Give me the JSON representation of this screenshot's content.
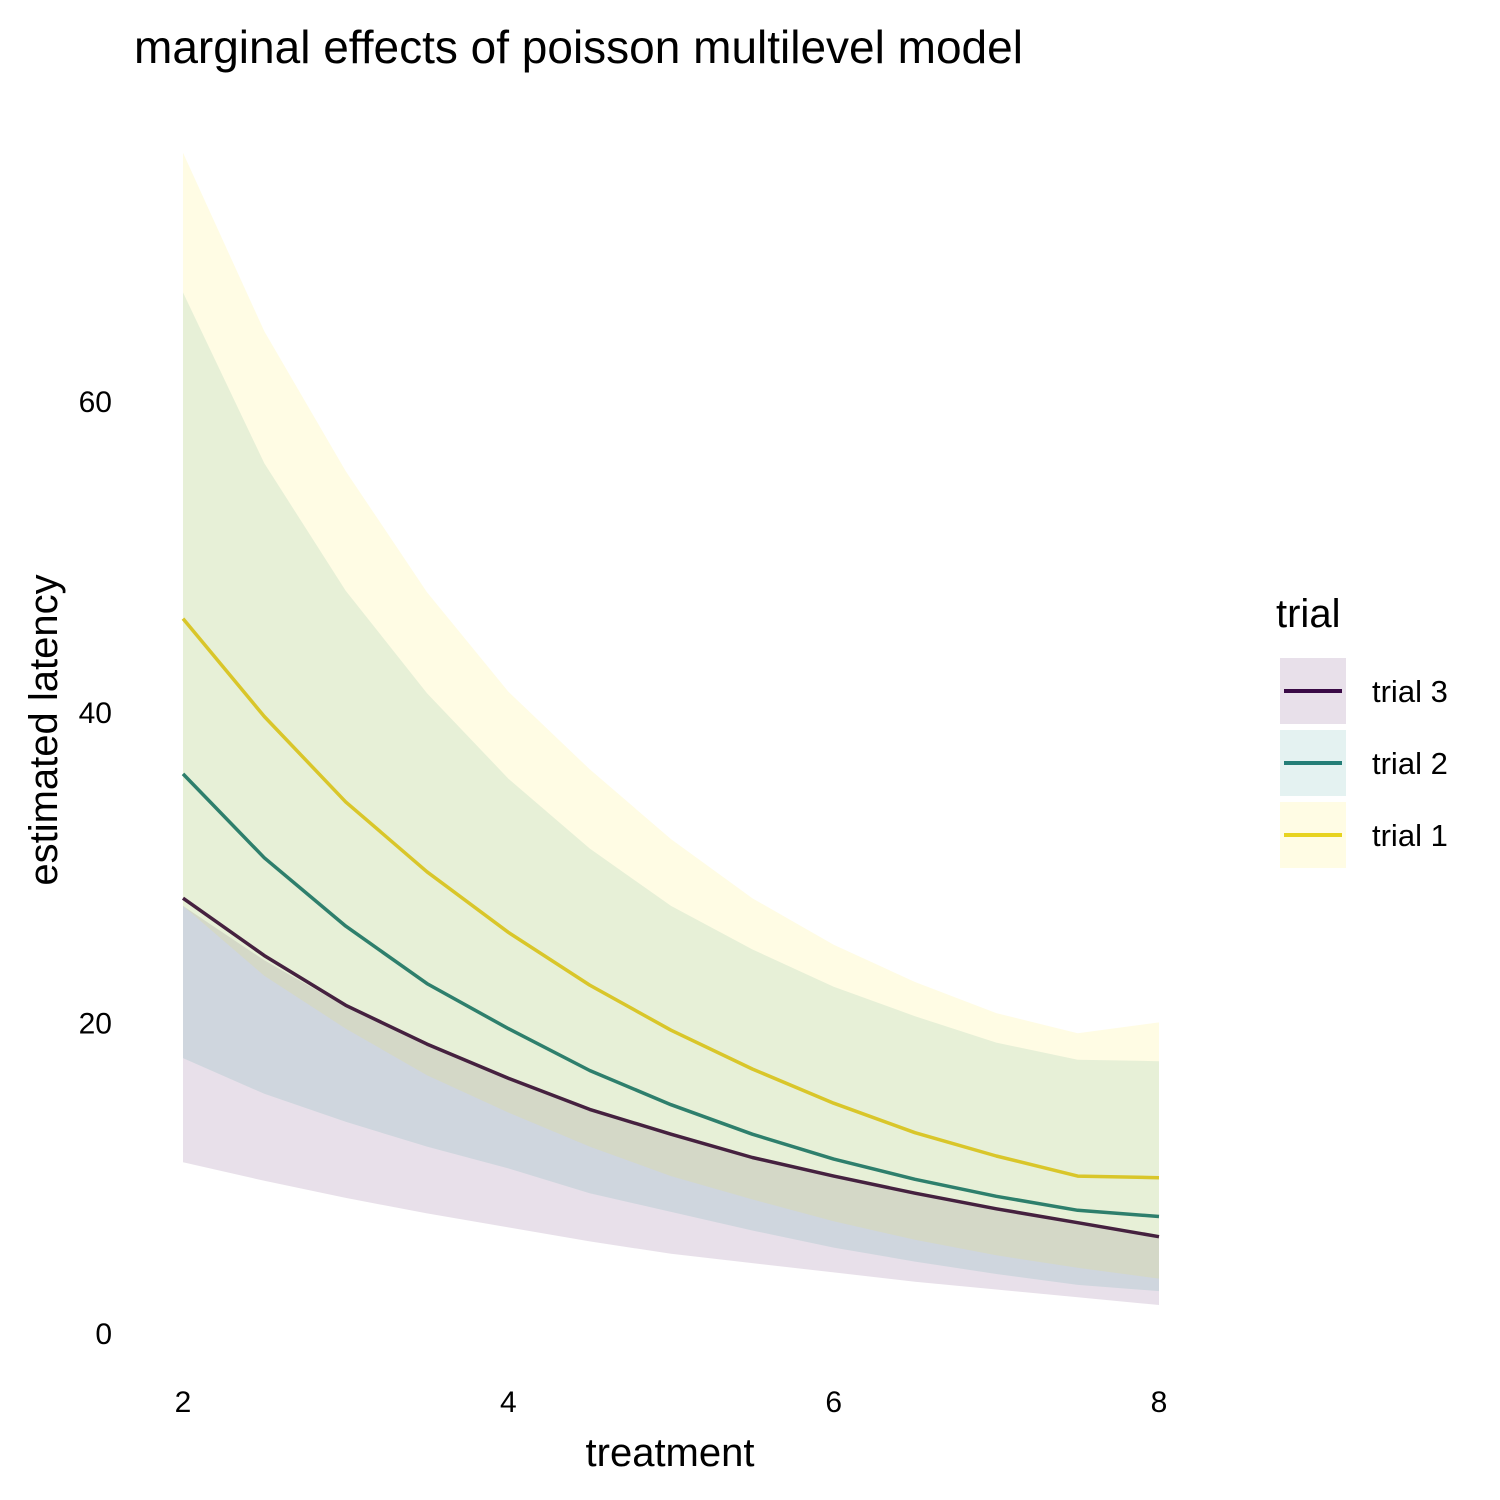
{
  "chart_data": {
    "type": "line",
    "title": "marginal effects of poisson multilevel model",
    "xlabel": "treatment",
    "ylabel": "estimated latency",
    "xlim": [
      2,
      8
    ],
    "ylim": [
      0,
      75
    ],
    "x_ticks": [
      "2",
      "4",
      "6",
      "8"
    ],
    "y_ticks": [
      "0",
      "20",
      "40",
      "60"
    ],
    "grid": false,
    "legend_title": "trial",
    "legend_position": "right",
    "x": [
      2,
      2.5,
      3,
      3.5,
      4,
      4.5,
      5,
      5.5,
      6,
      6.5,
      7,
      7.5,
      8
    ],
    "series": [
      {
        "name": "trial 3",
        "color": "#440154",
        "values": [
          28.0,
          24.3,
          21.1,
          18.6,
          16.4,
          14.4,
          12.8,
          11.3,
          10.1,
          9.0,
          8.0,
          7.1,
          6.2
        ],
        "lower": [
          11.0,
          9.8,
          8.7,
          7.7,
          6.8,
          5.9,
          5.1,
          4.5,
          3.9,
          3.3,
          2.8,
          2.3,
          1.8
        ],
        "upper": [
          27.5,
          24.0,
          21.0,
          18.5,
          16.5,
          14.4,
          12.8,
          11.3,
          10.1,
          9.0,
          7.9,
          7.0,
          6.2
        ]
      },
      {
        "name": "trial 2",
        "color": "#21908C",
        "values": [
          36.0,
          30.6,
          26.2,
          22.5,
          19.6,
          16.9,
          14.7,
          12.8,
          11.2,
          9.9,
          8.8,
          7.9,
          7.5
        ],
        "lower": [
          17.7,
          15.4,
          13.6,
          12.0,
          10.6,
          9.0,
          7.8,
          6.6,
          5.5,
          4.6,
          3.8,
          3.1,
          2.7
        ],
        "upper": [
          67.0,
          56.0,
          47.8,
          41.2,
          35.7,
          31.2,
          27.5,
          24.7,
          22.3,
          20.4,
          18.7,
          17.6,
          17.5
        ]
      },
      {
        "name": "trial 1",
        "color": "#FDE725",
        "values": [
          46.0,
          39.7,
          34.2,
          29.7,
          25.8,
          22.4,
          19.5,
          17.0,
          14.8,
          12.9,
          11.4,
          10.1,
          10.0
        ],
        "lower": [
          27.5,
          23.0,
          19.6,
          16.6,
          14.2,
          12.0,
          10.1,
          8.6,
          7.2,
          6.0,
          5.0,
          4.2,
          3.5
        ],
        "upper": [
          76.0,
          64.5,
          55.5,
          47.7,
          41.3,
          36.3,
          31.8,
          28.0,
          25.0,
          22.6,
          20.6,
          19.3,
          20.0
        ]
      }
    ]
  }
}
